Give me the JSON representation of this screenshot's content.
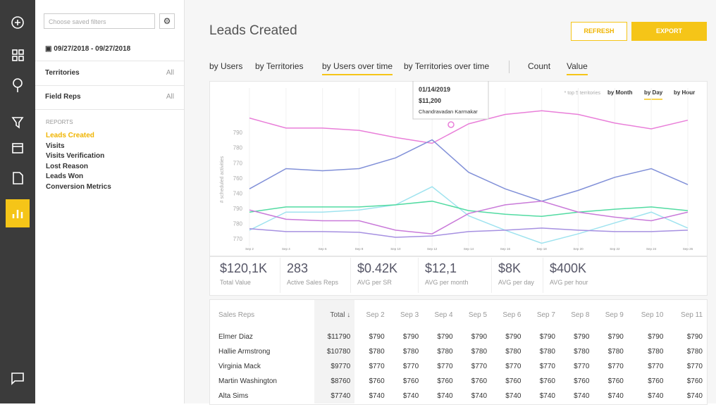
{
  "sidebar": {
    "saved_filters": "Choose saved filters",
    "date_range": "09/27/2018 - 09/27/2018",
    "filters": [
      {
        "label": "Territories",
        "value": "All"
      },
      {
        "label": "Field Reps",
        "value": "All"
      }
    ],
    "reports_heading": "REPORTS",
    "reports": [
      "Leads Created",
      "Visits",
      "Visits Verification",
      "Lost Reason",
      "Leads Won",
      "Conversion Metrics"
    ],
    "active_report": 0
  },
  "header": {
    "title": "Leads Created",
    "refresh": "REFRESH",
    "export": "EXPORT"
  },
  "tabs": {
    "views": [
      "by Users",
      "by Territories",
      "by Users over time",
      "by Territories over time"
    ],
    "active_view": 2,
    "measures": [
      "Count",
      "Value"
    ],
    "active_measure": 1
  },
  "chart": {
    "type": "line",
    "y_label": "# scheduled activities",
    "note": "* top 5 territories",
    "periods": [
      "by Month",
      "by Day",
      "by Hour"
    ],
    "active_period": 1,
    "categories": [
      "Sep 2",
      "Sep 4",
      "Sep 6",
      "Sep 8",
      "Sep 10",
      "Sep 12",
      "Sep 14",
      "Sep 16",
      "Sep 18",
      "Sep 20",
      "Sep 22",
      "Sep 24",
      "Sep 26"
    ],
    "ylim": [
      715,
      810
    ],
    "yticks": [
      790,
      780,
      770,
      760,
      {
        "value": 750,
        "label": "740"
      },
      {
        "value": 740,
        "label": "790"
      },
      {
        "value": 730,
        "label": "780"
      },
      {
        "value": 720,
        "label": "770"
      }
    ],
    "series": [
      {
        "color": "#e97fd9",
        "values": [
          799.5,
          792.9,
          792.9,
          791.4,
          786.7,
          782.9,
          795.7,
          801.9,
          804.3,
          801.9,
          796.2,
          792.4,
          798.1
        ]
      },
      {
        "color": "#8190d8",
        "values": [
          752.9,
          766.2,
          764.8,
          766.2,
          773.3,
          785.2,
          763.8,
          752.9,
          744.8,
          751.9,
          760.5,
          766.2,
          755.7
        ]
      },
      {
        "color": "#9fe3ef",
        "values": [
          725.7,
          737.6,
          737.6,
          739,
          742.4,
          754.3,
          735.2,
          725.7,
          717.1,
          723.3,
          730.5,
          737.6,
          727.1
        ]
      },
      {
        "color": "#52dba2",
        "values": [
          737.6,
          741,
          741,
          741,
          742.4,
          744.8,
          738.6,
          736.2,
          734.8,
          737.6,
          739.5,
          741,
          738.6
        ]
      },
      {
        "color": "#c97ad9",
        "values": [
          739,
          732.9,
          731.9,
          731.9,
          725.7,
          723.3,
          736.7,
          742.4,
          744.8,
          737.6,
          734.3,
          731.9,
          737.6
        ]
      },
      {
        "color": "#a690e1",
        "values": [
          726.7,
          724.8,
          724.8,
          724.3,
          721,
          721.9,
          724.8,
          725.7,
          727.1,
          725.7,
          724.8,
          724.8,
          725.7
        ]
      }
    ],
    "tooltip": {
      "date": "01/14/2019",
      "value": "$11,200",
      "name": "Chandravadan Karmakar"
    }
  },
  "stats": [
    {
      "value": "$120,1K",
      "label": "Total Value"
    },
    {
      "value": "283",
      "label": "Active Sales Reps"
    },
    {
      "value": "$0.42K",
      "label": "AVG per SR"
    },
    {
      "value": "$12,1",
      "label": "AVG per month"
    },
    {
      "value": "$8K",
      "label": "AVG per day"
    },
    {
      "value": "$400K",
      "label": "AVG per hour"
    }
  ],
  "table": {
    "columns": [
      "Sales Reps",
      "Total ↓",
      "Sep 2",
      "Sep 3",
      "Sep 4",
      "Sep 5",
      "Sep 6",
      "Sep 7",
      "Sep 8",
      "Sep 9",
      "Sep 10",
      "Sep 11"
    ],
    "rows": [
      [
        "Elmer Diaz",
        "$11790",
        "$790",
        "$790",
        "$790",
        "$790",
        "$790",
        "$790",
        "$790",
        "$790",
        "$790",
        "$790"
      ],
      [
        "Hallie Armstrong",
        "$10780",
        "$780",
        "$780",
        "$780",
        "$780",
        "$780",
        "$780",
        "$780",
        "$780",
        "$780",
        "$780"
      ],
      [
        "Virginia Mack",
        "$9770",
        "$770",
        "$770",
        "$770",
        "$770",
        "$770",
        "$770",
        "$770",
        "$770",
        "$770",
        "$770"
      ],
      [
        "Martin Washington",
        "$8760",
        "$760",
        "$760",
        "$760",
        "$760",
        "$760",
        "$760",
        "$760",
        "$760",
        "$760",
        "$760"
      ],
      [
        "Alta Sims",
        "$7740",
        "$740",
        "$740",
        "$740",
        "$740",
        "$740",
        "$740",
        "$740",
        "$740",
        "$740",
        "$740"
      ]
    ]
  }
}
